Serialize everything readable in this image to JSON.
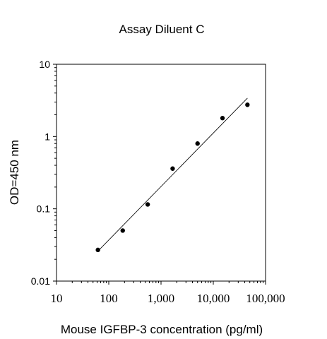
{
  "chart_data": {
    "type": "scatter",
    "title": "Assay Diluent C",
    "xlabel": "Mouse IGFBP-3 concentration (pg/ml)",
    "ylabel": "OD=450 nm",
    "x_scale": "log",
    "y_scale": "log",
    "xlim": [
      10,
      100000
    ],
    "ylim": [
      0.01,
      10
    ],
    "x_ticks": [
      10,
      100,
      1000,
      10000,
      100000
    ],
    "x_tick_labels": [
      "10",
      "100",
      "1,000",
      "10,000",
      "100,000"
    ],
    "y_ticks": [
      0.01,
      0.1,
      1,
      10
    ],
    "y_tick_labels": [
      "0.01",
      "0.1",
      "1",
      "10"
    ],
    "grid": false,
    "legend": false,
    "series": [
      {
        "x": [
          62,
          185,
          556,
          1667,
          5000,
          15000,
          45000
        ],
        "y": [
          0.027,
          0.05,
          0.115,
          0.36,
          0.8,
          1.8,
          2.75
        ]
      }
    ],
    "fit_line": {
      "x": [
        62,
        45000
      ],
      "y": [
        0.026,
        3.4
      ]
    },
    "colors": {
      "points": "#000000",
      "line": "#000000",
      "axes": "#000000"
    }
  }
}
